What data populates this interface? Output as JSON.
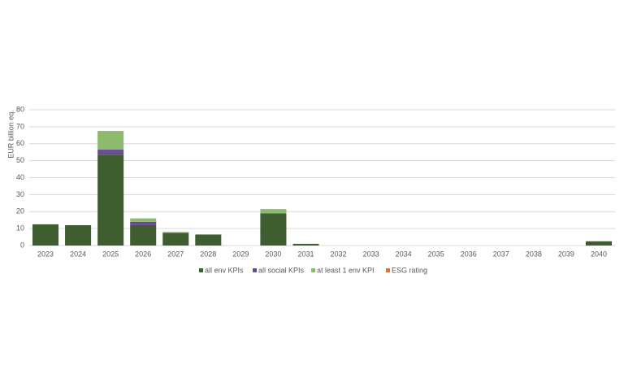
{
  "chart_data": {
    "type": "stacked-bar",
    "y_label": "EUR billion eq.",
    "categories": [
      "2023",
      "2024",
      "2025",
      "2026",
      "2027",
      "2028",
      "2029",
      "2030",
      "2031",
      "2032",
      "2033",
      "2034",
      "2035",
      "2036",
      "2037",
      "2038",
      "2039",
      "2040"
    ],
    "series": [
      {
        "name": "all env KPIs",
        "color": "#3e5e2f",
        "values": [
          12.5,
          12,
          53.5,
          12,
          7.5,
          6.5,
          0,
          19,
          1,
          0,
          0,
          0,
          0,
          0,
          0,
          0,
          0,
          2.5
        ]
      },
      {
        "name": "all social KPIs",
        "color": "#6a4c93",
        "values": [
          0,
          0,
          3,
          2,
          0,
          0,
          0,
          0,
          0,
          0,
          0,
          0,
          0,
          0,
          0,
          0,
          0,
          0
        ]
      },
      {
        "name": "at least 1 env KPI",
        "color": "#8dbb6e",
        "values": [
          0,
          0,
          11,
          2,
          0.5,
          0,
          0,
          2.5,
          0,
          0,
          0,
          0,
          0,
          0,
          0,
          0,
          0,
          0
        ]
      },
      {
        "name": "ESG rating",
        "color": "#d4773a",
        "values": [
          0,
          0,
          0,
          0,
          0,
          0,
          0,
          0,
          0,
          0,
          0,
          0,
          0,
          0,
          0,
          0,
          0,
          0
        ]
      }
    ],
    "ylim": [
      0,
      80
    ],
    "yticks": [
      0,
      10,
      20,
      30,
      40,
      50,
      60,
      70,
      80
    ],
    "grid": true
  }
}
